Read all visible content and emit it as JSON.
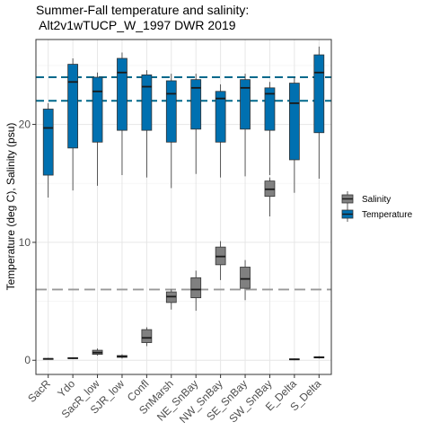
{
  "chart_data": {
    "type": "boxplot",
    "title": [
      "Summer-Fall temperature and salinity:",
      " Alt2v1wTUCP_W_1997 DWR 2019"
    ],
    "xlabel": "",
    "ylabel": "Temperature (deg C), Salinity (psu)",
    "ylim": [
      -1.2,
      27.2
    ],
    "yticks": [
      0,
      10,
      20
    ],
    "grid": true,
    "legend_position": "right",
    "categories": [
      "SacR",
      "Ydo",
      "SacR_low",
      "SJR_low",
      "Confl",
      "SnMarsh",
      "NE_SnBay",
      "NW_SnBay",
      "SE_SnBay",
      "SW_SnBay",
      "E_Delta",
      "S_Delta"
    ],
    "reference_lines": [
      {
        "y": 24.0,
        "color": "#00688B",
        "style": "dashed"
      },
      {
        "y": 22.0,
        "color": "#00688B",
        "style": "dashed"
      },
      {
        "y": 6.0,
        "color": "#999999",
        "style": "dashed"
      }
    ],
    "series": [
      {
        "name": "Salinity",
        "color": "#808080",
        "boxes": [
          {
            "category": "SacR",
            "min": 0.05,
            "q1": 0.1,
            "median": 0.12,
            "q3": 0.15,
            "max": 0.2
          },
          {
            "category": "Ydo",
            "min": 0.1,
            "q1": 0.15,
            "median": 0.18,
            "q3": 0.22,
            "max": 0.25
          },
          {
            "category": "SacR_low",
            "min": 0.4,
            "q1": 0.5,
            "median": 0.65,
            "q3": 0.85,
            "max": 1.0
          },
          {
            "category": "SJR_low",
            "min": 0.15,
            "q1": 0.25,
            "median": 0.32,
            "q3": 0.4,
            "max": 0.5
          },
          {
            "category": "Confl",
            "min": 1.2,
            "q1": 1.5,
            "median": 1.9,
            "q3": 2.6,
            "max": 2.8
          },
          {
            "category": "SnMarsh",
            "min": 4.3,
            "q1": 4.9,
            "median": 5.4,
            "q3": 5.8,
            "max": 6.0
          },
          {
            "category": "NE_SnBay",
            "min": 4.2,
            "q1": 5.3,
            "median": 6.0,
            "q3": 7.0,
            "max": 7.6
          },
          {
            "category": "NW_SnBay",
            "min": 6.8,
            "q1": 8.1,
            "median": 8.8,
            "q3": 9.6,
            "max": 10.1
          },
          {
            "category": "SE_SnBay",
            "min": 5.1,
            "q1": 6.1,
            "median": 6.9,
            "q3": 7.9,
            "max": 8.5
          },
          {
            "category": "SW_SnBay",
            "min": 12.2,
            "q1": 13.9,
            "median": 14.5,
            "q3": 15.2,
            "max": 15.5
          },
          {
            "category": "E_Delta",
            "min": 0.0,
            "q1": 0.05,
            "median": 0.08,
            "q3": 0.12,
            "max": 0.15
          },
          {
            "category": "S_Delta",
            "min": 0.15,
            "q1": 0.2,
            "median": 0.25,
            "q3": 0.3,
            "max": 0.35
          }
        ]
      },
      {
        "name": "Temperature",
        "color": "#0070B0",
        "boxes": [
          {
            "category": "SacR",
            "min": 13.8,
            "q1": 15.7,
            "median": 19.7,
            "q3": 21.3,
            "max": 21.8
          },
          {
            "category": "Ydo",
            "min": 14.4,
            "q1": 18.0,
            "median": 23.6,
            "q3": 25.1,
            "max": 25.6
          },
          {
            "category": "SacR_low",
            "min": 14.8,
            "q1": 18.5,
            "median": 22.8,
            "q3": 24.0,
            "max": 24.4
          },
          {
            "category": "SJR_low",
            "min": 15.7,
            "q1": 19.5,
            "median": 24.4,
            "q3": 25.6,
            "max": 26.1
          },
          {
            "category": "Confl",
            "min": 15.5,
            "q1": 19.5,
            "median": 23.2,
            "q3": 24.2,
            "max": 24.6
          },
          {
            "category": "SnMarsh",
            "min": 14.6,
            "q1": 18.5,
            "median": 22.6,
            "q3": 23.7,
            "max": 24.3
          },
          {
            "category": "NE_SnBay",
            "min": 15.8,
            "q1": 19.6,
            "median": 23.1,
            "q3": 23.8,
            "max": 24.3
          },
          {
            "category": "NW_SnBay",
            "min": 15.5,
            "q1": 18.5,
            "median": 22.2,
            "q3": 22.8,
            "max": 23.4
          },
          {
            "category": "SE_SnBay",
            "min": 15.6,
            "q1": 19.6,
            "median": 23.1,
            "q3": 23.8,
            "max": 24.3
          },
          {
            "category": "SW_SnBay",
            "min": 15.7,
            "q1": 19.5,
            "median": 22.6,
            "q3": 23.1,
            "max": 23.6
          },
          {
            "category": "E_Delta",
            "min": 14.2,
            "q1": 17.0,
            "median": 21.8,
            "q3": 23.5,
            "max": 24.0
          },
          {
            "category": "S_Delta",
            "min": 15.4,
            "q1": 19.3,
            "median": 24.4,
            "q3": 25.9,
            "max": 26.6
          }
        ]
      }
    ]
  }
}
